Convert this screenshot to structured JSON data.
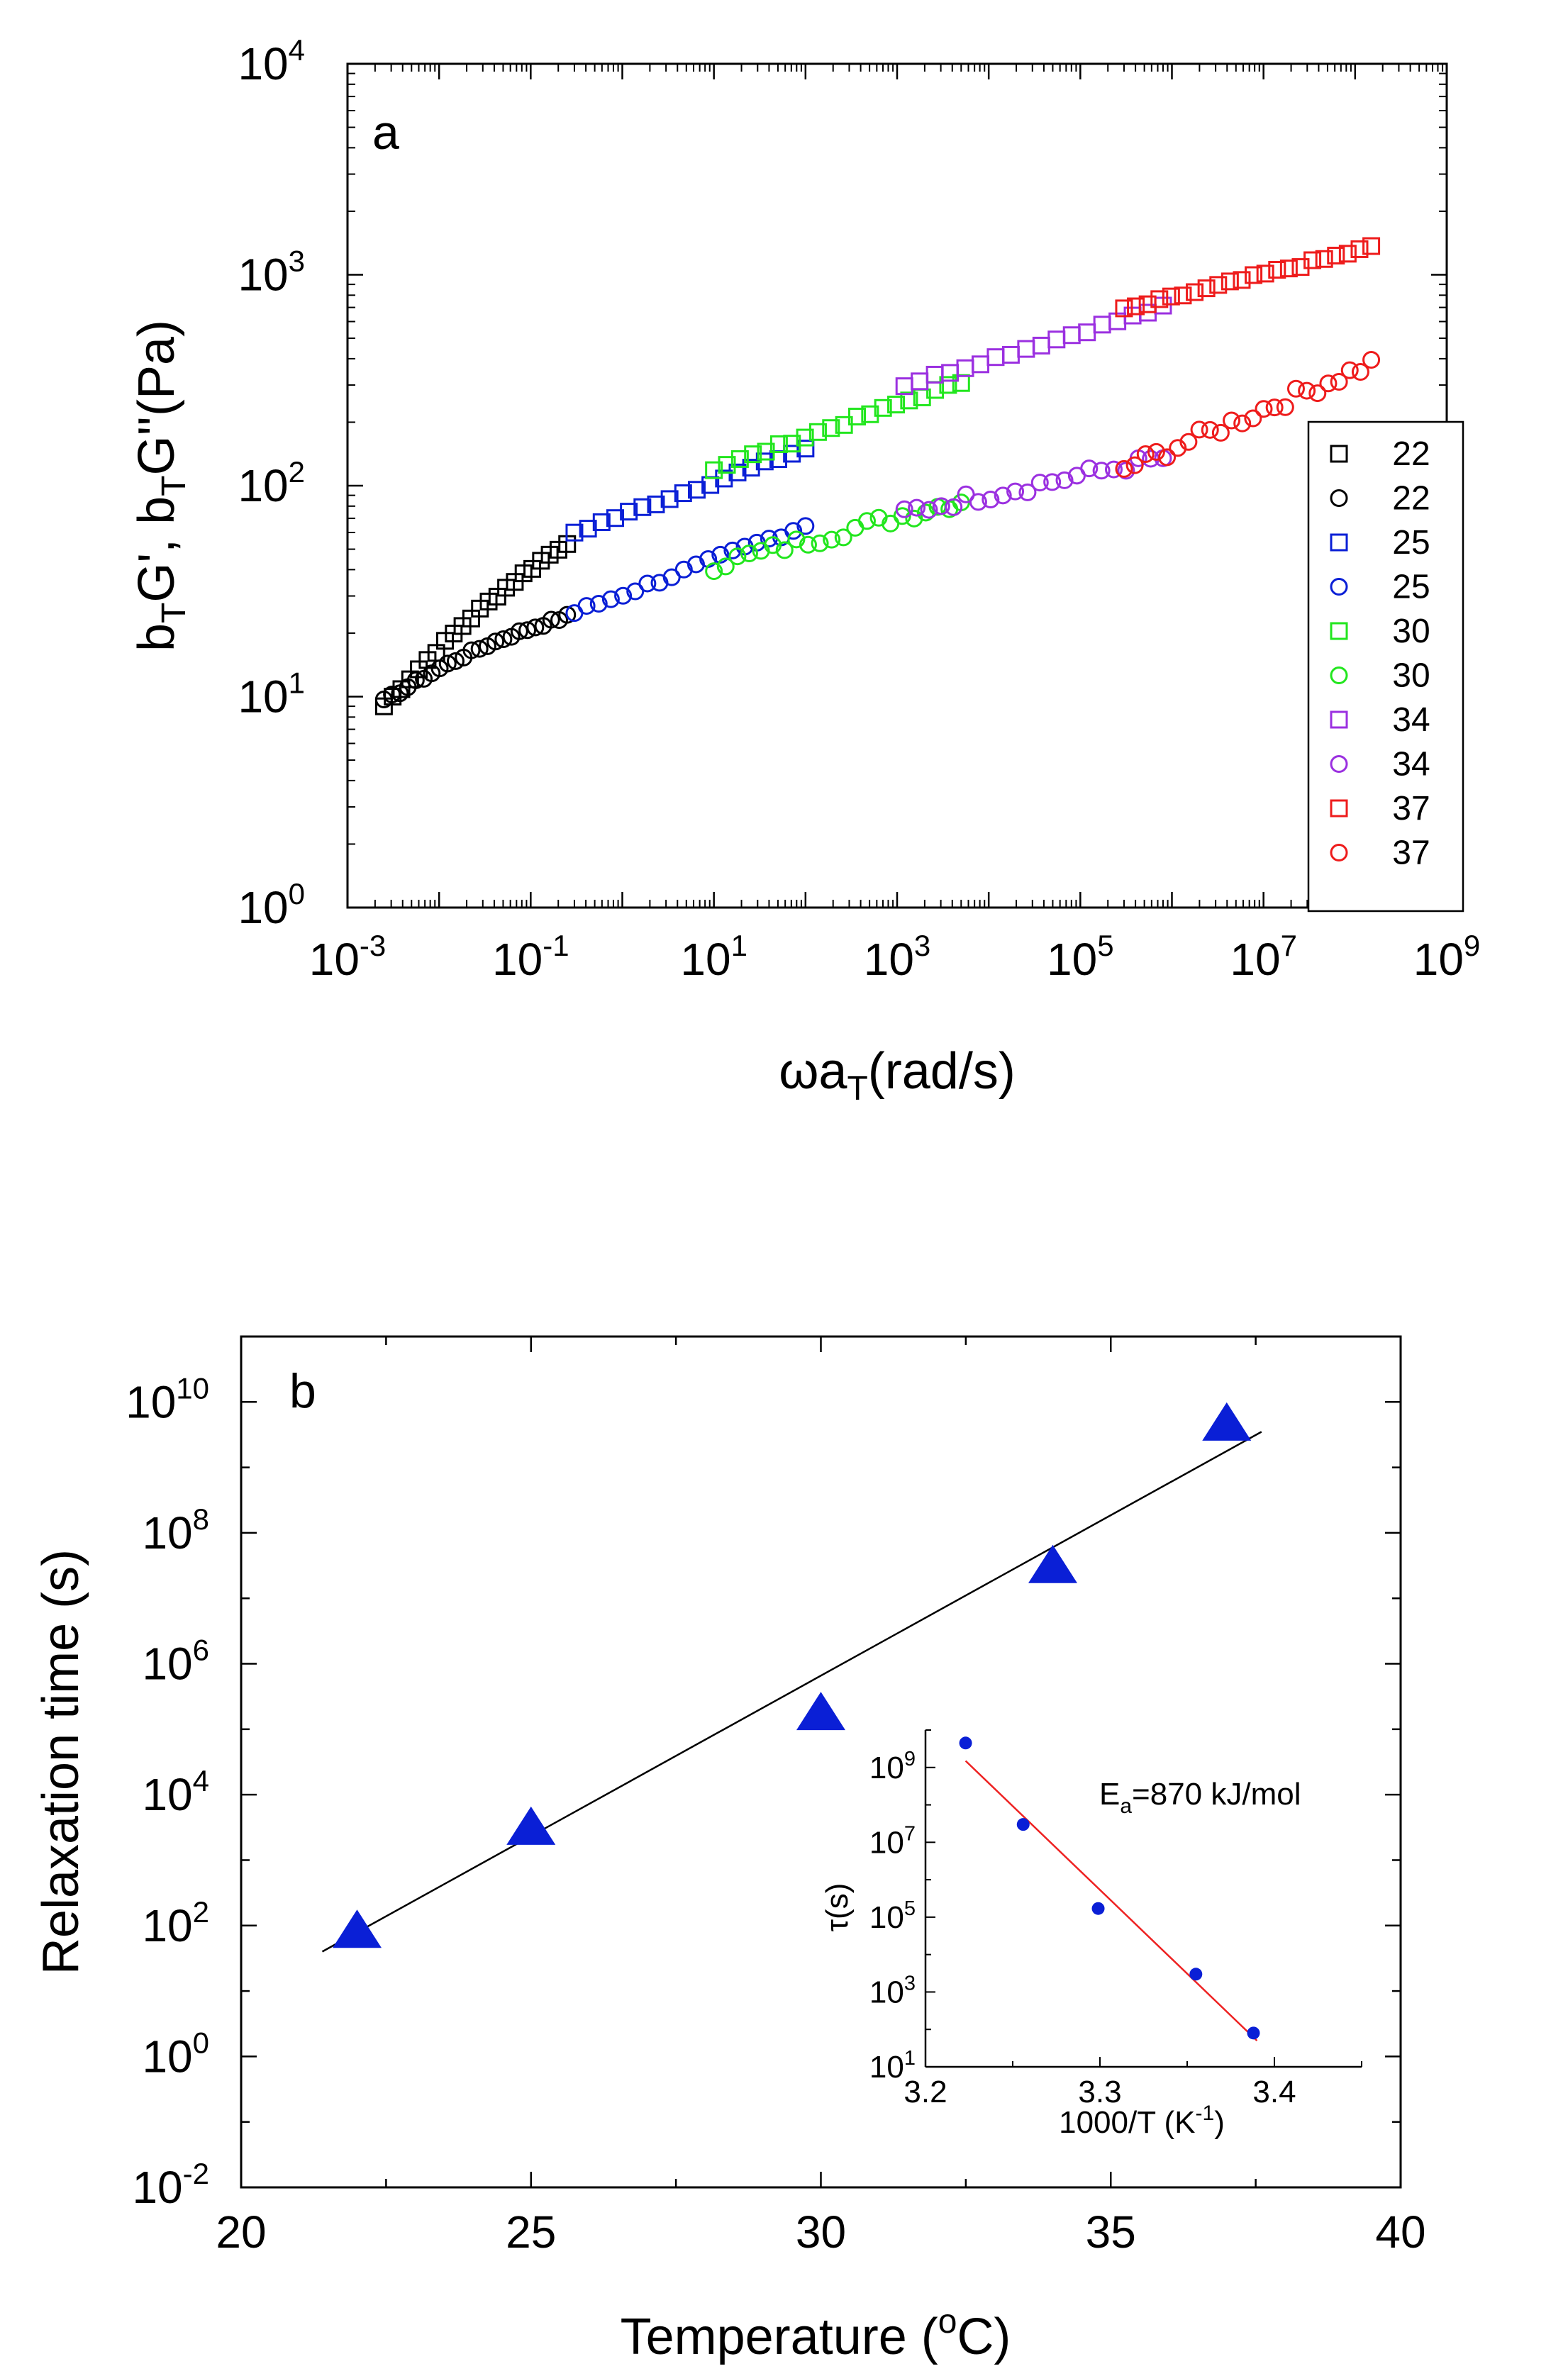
{
  "chart_data": [
    {
      "type": "scatter",
      "panel_label": "a",
      "x_scale": "log",
      "y_scale": "log",
      "xlim": [
        0.001,
        1000000000
      ],
      "ylim": [
        1,
        10000
      ],
      "xlabel": {
        "main": "ωa",
        "sub": "T",
        "tail": "(rad/s)"
      },
      "ylabel": {
        "p1": "b",
        "s1": "T",
        "p2": "G', b",
        "s2": "T",
        "p3": "G''(Pa)"
      },
      "x_ticks": [
        {
          "base": "10",
          "exp": "-3",
          "value": 0.001
        },
        {
          "base": "10",
          "exp": "-1",
          "value": 0.1
        },
        {
          "base": "10",
          "exp": "1",
          "value": 10
        },
        {
          "base": "10",
          "exp": "3",
          "value": 1000
        },
        {
          "base": "10",
          "exp": "5",
          "value": 100000
        },
        {
          "base": "10",
          "exp": "7",
          "value": 10000000
        },
        {
          "base": "10",
          "exp": "9",
          "value": 1000000000
        }
      ],
      "y_ticks": [
        {
          "base": "10",
          "exp": "0",
          "value": 1
        },
        {
          "base": "10",
          "exp": "1",
          "value": 10
        },
        {
          "base": "10",
          "exp": "2",
          "value": 100
        },
        {
          "base": "10",
          "exp": "3",
          "value": 1000
        },
        {
          "base": "10",
          "exp": "4",
          "value": 10000
        }
      ],
      "legend_position": "bottom-right",
      "series": [
        {
          "name": "22",
          "marker": "square",
          "color": "#000000",
          "x_range": [
            0.0025,
            0.25
          ],
          "y_start": 9,
          "y_end": 54,
          "n": 22,
          "jitter": 0.01
        },
        {
          "name": "22",
          "marker": "circle",
          "color": "#000000",
          "x_range": [
            0.0025,
            0.25
          ],
          "y_start": 9.5,
          "y_end": 24,
          "n": 24,
          "jitter": 0.01
        },
        {
          "name": "25",
          "marker": "square",
          "color": "#0a1fd6",
          "x_range": [
            0.3,
            100
          ],
          "y_start": 60,
          "y_end": 150,
          "n": 18,
          "jitter": 0.01
        },
        {
          "name": "25",
          "marker": "circle",
          "color": "#0a1fd6",
          "x_range": [
            0.3,
            100
          ],
          "y_start": 25,
          "y_end": 65,
          "n": 20,
          "jitter": 0.015
        },
        {
          "name": "30",
          "marker": "square",
          "color": "#22e61e",
          "x_range": [
            10,
            5000
          ],
          "y_start": 120,
          "y_end": 310,
          "n": 20,
          "jitter": 0.01
        },
        {
          "name": "30",
          "marker": "circle",
          "color": "#22e61e",
          "x_range": [
            10,
            5000
          ],
          "y_start": 42,
          "y_end": 85,
          "n": 22,
          "jitter": 0.03
        },
        {
          "name": "34",
          "marker": "square",
          "color": "#9b30e0",
          "x_range": [
            1200,
            800000
          ],
          "y_start": 300,
          "y_end": 700,
          "n": 18,
          "jitter": 0.01
        },
        {
          "name": "34",
          "marker": "circle",
          "color": "#9b30e0",
          "x_range": [
            1200,
            800000
          ],
          "y_start": 75,
          "y_end": 135,
          "n": 22,
          "jitter": 0.03
        },
        {
          "name": "37",
          "marker": "square",
          "color": "#ee1c1c",
          "x_range": [
            300000,
            150000000
          ],
          "y_start": 680,
          "y_end": 1350,
          "n": 22,
          "jitter": 0.01
        },
        {
          "name": "37",
          "marker": "circle",
          "color": "#ee1c1c",
          "x_range": [
            300000,
            150000000
          ],
          "y_start": 120,
          "y_end": 380,
          "n": 24,
          "jitter": 0.035
        }
      ]
    },
    {
      "type": "scatter",
      "panel_label": "b",
      "x_scale": "linear",
      "y_scale": "log",
      "xlim": [
        20,
        40
      ],
      "ylim": [
        0.01,
        100000000000
      ],
      "xlabel": {
        "main": "Temperature (",
        "sup": "o",
        "tail": "C)"
      },
      "ylabel": "Relaxation time (s)",
      "x_ticks": [
        {
          "label": "20",
          "value": 20
        },
        {
          "label": "25",
          "value": 25
        },
        {
          "label": "30",
          "value": 30
        },
        {
          "label": "35",
          "value": 35
        },
        {
          "label": "40",
          "value": 40
        }
      ],
      "y_ticks": [
        {
          "base": "10",
          "exp": "-2",
          "value": 0.01
        },
        {
          "base": "10",
          "exp": "0",
          "value": 1
        },
        {
          "base": "10",
          "exp": "2",
          "value": 100
        },
        {
          "base": "10",
          "exp": "4",
          "value": 10000
        },
        {
          "base": "10",
          "exp": "6",
          "value": 1000000
        },
        {
          "base": "10",
          "exp": "8",
          "value": 100000000
        },
        {
          "base": "10",
          "exp": "10",
          "value": 10000000000
        }
      ],
      "marker_color": "#0a1fd6",
      "points": [
        {
          "x": 22,
          "y": 80
        },
        {
          "x": 25,
          "y": 3000
        },
        {
          "x": 30,
          "y": 170000
        },
        {
          "x": 34,
          "y": 30000000
        },
        {
          "x": 37,
          "y": 4500000000
        }
      ],
      "fit_line": [
        {
          "x": 21.4,
          "y": 40
        },
        {
          "x": 37.6,
          "y": 3500000000
        }
      ],
      "inset": {
        "type": "scatter",
        "x_scale": "linear",
        "y_scale": "log",
        "xlim": [
          3.2,
          3.45
        ],
        "ylim": [
          10,
          10000000000
        ],
        "xlabel": "1000/T (K",
        "xlabel_sup": "-1",
        "xlabel_tail": ")",
        "ylabel": "τ(s)",
        "annotation": {
          "main": "E",
          "sub": "a",
          "tail": "=870 kJ/mol"
        },
        "x_ticks": [
          {
            "label": "3.2",
            "value": 3.2
          },
          {
            "label": "3.3",
            "value": 3.3
          },
          {
            "label": "3.4",
            "value": 3.4
          }
        ],
        "y_ticks": [
          {
            "base": "10",
            "exp": "1",
            "value": 10
          },
          {
            "base": "10",
            "exp": "3",
            "value": 1000
          },
          {
            "base": "10",
            "exp": "5",
            "value": 100000
          },
          {
            "base": "10",
            "exp": "7",
            "value": 10000000
          },
          {
            "base": "10",
            "exp": "9",
            "value": 1000000000
          }
        ],
        "marker_color": "#0a1fd6",
        "line_color": "#ee2222",
        "points": [
          {
            "x": 3.223,
            "y": 4500000000
          },
          {
            "x": 3.256,
            "y": 30000000
          },
          {
            "x": 3.299,
            "y": 170000
          },
          {
            "x": 3.355,
            "y": 3000
          },
          {
            "x": 3.388,
            "y": 80
          }
        ],
        "fit_line": [
          {
            "x": 3.223,
            "y": 1500000000
          },
          {
            "x": 3.39,
            "y": 50
          }
        ]
      }
    }
  ]
}
